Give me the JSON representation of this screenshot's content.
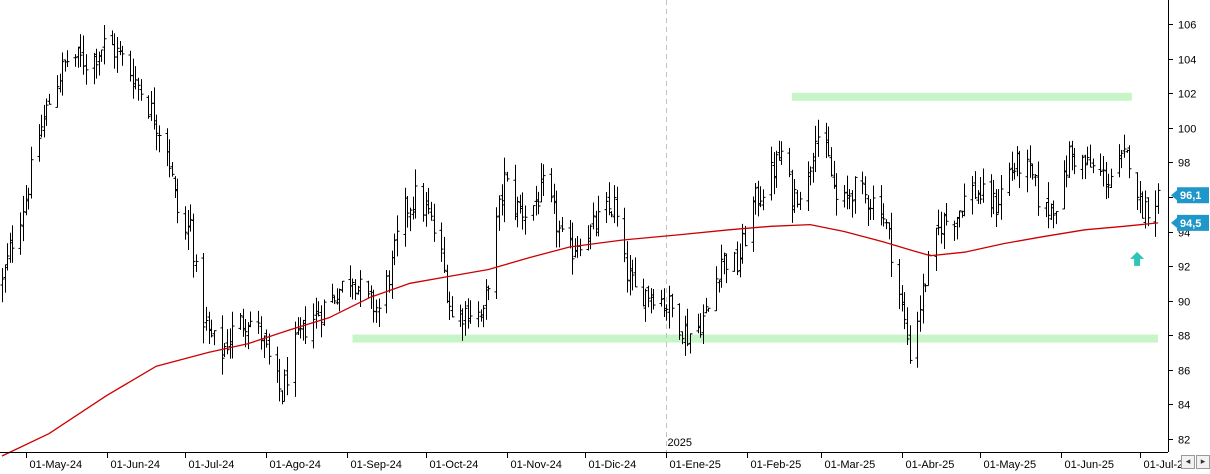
{
  "chart_data": {
    "type": "ohlc",
    "ylim": [
      81,
      107
    ],
    "y_ticks": [
      82,
      84,
      86,
      88,
      90,
      92,
      94,
      96,
      98,
      100,
      102,
      104,
      106
    ],
    "x_start": "2024-04-22",
    "x_end": "2025-07-08",
    "x_ticks": [
      {
        "date": "2024-05-01",
        "label": "01-May-24"
      },
      {
        "date": "2024-06-01",
        "label": "01-Jun-24"
      },
      {
        "date": "2024-07-01",
        "label": "01-Jul-24"
      },
      {
        "date": "2024-08-01",
        "label": "01-Ago-24"
      },
      {
        "date": "2024-09-01",
        "label": "01-Sep-24"
      },
      {
        "date": "2024-10-01",
        "label": "01-Oct-24"
      },
      {
        "date": "2024-11-01",
        "label": "01-Nov-24"
      },
      {
        "date": "2024-12-01",
        "label": "01-Dic-24"
      },
      {
        "date": "2025-01-01",
        "label": "01-Ene-25"
      },
      {
        "date": "2025-02-01",
        "label": "01-Feb-25"
      },
      {
        "date": "2025-03-01",
        "label": "01-Mar-25"
      },
      {
        "date": "2025-04-01",
        "label": "01-Abr-25"
      },
      {
        "date": "2025-05-01",
        "label": "01-May-25"
      },
      {
        "date": "2025-06-01",
        "label": "01-Jun-25"
      },
      {
        "date": "2025-07-01",
        "label": "01-Jul-2"
      }
    ],
    "year_marker": {
      "date": "2025-01-01",
      "label": "2025"
    },
    "price_anchors": [
      [
        "2024-04-22",
        91.0
      ],
      [
        "2024-04-26",
        93.5
      ],
      [
        "2024-05-01",
        96.0
      ],
      [
        "2024-05-06",
        99.5
      ],
      [
        "2024-05-12",
        102.5
      ],
      [
        "2024-05-18",
        104.2
      ],
      [
        "2024-05-25",
        103.8
      ],
      [
        "2024-06-01",
        105.0
      ],
      [
        "2024-06-07",
        104.0
      ],
      [
        "2024-06-13",
        102.5
      ],
      [
        "2024-06-18",
        101.0
      ],
      [
        "2024-06-24",
        99.0
      ],
      [
        "2024-06-27",
        96.0
      ],
      [
        "2024-06-30",
        93.5
      ],
      [
        "2024-07-03",
        94.5
      ],
      [
        "2024-07-06",
        90.0
      ],
      [
        "2024-07-10",
        88.0
      ],
      [
        "2024-07-15",
        87.0
      ],
      [
        "2024-07-20",
        88.5
      ],
      [
        "2024-07-25",
        89.0
      ],
      [
        "2024-07-30",
        88.0
      ],
      [
        "2024-08-04",
        85.5
      ],
      [
        "2024-08-07",
        84.5
      ],
      [
        "2024-08-11",
        87.0
      ],
      [
        "2024-08-16",
        88.5
      ],
      [
        "2024-08-22",
        89.5
      ],
      [
        "2024-08-28",
        90.5
      ],
      [
        "2024-09-03",
        91.5
      ],
      [
        "2024-09-08",
        90.0
      ],
      [
        "2024-09-13",
        89.5
      ],
      [
        "2024-09-18",
        92.0
      ],
      [
        "2024-09-22",
        95.0
      ],
      [
        "2024-09-27",
        96.0
      ],
      [
        "2024-10-02",
        95.0
      ],
      [
        "2024-10-07",
        92.5
      ],
      [
        "2024-10-11",
        89.0
      ],
      [
        "2024-10-17",
        89.5
      ],
      [
        "2024-10-23",
        89.0
      ],
      [
        "2024-10-27",
        93.5
      ],
      [
        "2024-10-31",
        97.0
      ],
      [
        "2024-11-04",
        95.5
      ],
      [
        "2024-11-09",
        95.0
      ],
      [
        "2024-11-15",
        96.5
      ],
      [
        "2024-11-19",
        95.0
      ],
      [
        "2024-11-24",
        92.5
      ],
      [
        "2024-11-28",
        93.5
      ],
      [
        "2024-12-03",
        94.0
      ],
      [
        "2024-12-08",
        95.0
      ],
      [
        "2024-12-12",
        95.5
      ],
      [
        "2024-12-16",
        92.0
      ],
      [
        "2024-12-20",
        90.5
      ],
      [
        "2024-12-27",
        90.5
      ],
      [
        "2025-01-03",
        89.5
      ],
      [
        "2025-01-09",
        88.0
      ],
      [
        "2025-01-13",
        88.5
      ],
      [
        "2025-01-17",
        89.5
      ],
      [
        "2025-01-22",
        92.5
      ],
      [
        "2025-01-28",
        92.0
      ],
      [
        "2025-02-03",
        95.5
      ],
      [
        "2025-02-09",
        97.0
      ],
      [
        "2025-02-14",
        98.5
      ],
      [
        "2025-02-18",
        96.0
      ],
      [
        "2025-02-24",
        97.0
      ],
      [
        "2025-02-27",
        100.0
      ],
      [
        "2025-03-04",
        98.0
      ],
      [
        "2025-03-08",
        95.0
      ],
      [
        "2025-03-13",
        96.5
      ],
      [
        "2025-03-18",
        96.0
      ],
      [
        "2025-03-24",
        95.5
      ],
      [
        "2025-03-28",
        93.0
      ],
      [
        "2025-04-01",
        89.5
      ],
      [
        "2025-04-04",
        87.0
      ],
      [
        "2025-04-07",
        89.0
      ],
      [
        "2025-04-11",
        92.0
      ],
      [
        "2025-04-16",
        94.5
      ],
      [
        "2025-04-22",
        95.0
      ],
      [
        "2025-04-27",
        96.5
      ],
      [
        "2025-05-02",
        96.0
      ],
      [
        "2025-05-07",
        95.5
      ],
      [
        "2025-05-12",
        97.5
      ],
      [
        "2025-05-17",
        98.0
      ],
      [
        "2025-05-21",
        97.0
      ],
      [
        "2025-05-25",
        95.0
      ],
      [
        "2025-05-28",
        95.5
      ],
      [
        "2025-06-01",
        96.0
      ],
      [
        "2025-06-04",
        98.5
      ],
      [
        "2025-06-09",
        98.0
      ],
      [
        "2025-06-14",
        97.5
      ],
      [
        "2025-06-19",
        97.0
      ],
      [
        "2025-06-24",
        98.0
      ],
      [
        "2025-06-28",
        98.5
      ],
      [
        "2025-07-01",
        95.5
      ],
      [
        "2025-07-04",
        95.5
      ],
      [
        "2025-07-08",
        96.1
      ]
    ],
    "moving_average": [
      [
        "2024-04-22",
        81.0
      ],
      [
        "2024-05-10",
        82.3
      ],
      [
        "2024-06-01",
        84.5
      ],
      [
        "2024-06-20",
        86.2
      ],
      [
        "2024-07-10",
        87.0
      ],
      [
        "2024-07-25",
        87.5
      ],
      [
        "2024-08-10",
        88.3
      ],
      [
        "2024-08-25",
        89.0
      ],
      [
        "2024-09-10",
        90.2
      ],
      [
        "2024-09-25",
        91.0
      ],
      [
        "2024-10-10",
        91.4
      ],
      [
        "2024-10-25",
        91.8
      ],
      [
        "2024-11-10",
        92.5
      ],
      [
        "2024-11-25",
        93.1
      ],
      [
        "2024-12-15",
        93.5
      ],
      [
        "2025-01-05",
        93.8
      ],
      [
        "2025-01-25",
        94.1
      ],
      [
        "2025-02-10",
        94.3
      ],
      [
        "2025-02-25",
        94.4
      ],
      [
        "2025-03-10",
        94.0
      ],
      [
        "2025-03-25",
        93.4
      ],
      [
        "2025-04-05",
        92.9
      ],
      [
        "2025-04-12",
        92.6
      ],
      [
        "2025-04-25",
        92.8
      ],
      [
        "2025-05-10",
        93.3
      ],
      [
        "2025-05-25",
        93.7
      ],
      [
        "2025-06-10",
        94.1
      ],
      [
        "2025-06-25",
        94.3
      ],
      [
        "2025-07-08",
        94.5
      ]
    ],
    "resistance_band": {
      "y": 101.8,
      "x_start": "2025-02-18",
      "x_end": "2025-06-28"
    },
    "support_band": {
      "y": 87.8,
      "x_start": "2024-09-03",
      "x_end": "2025-07-08"
    },
    "price_badge": {
      "label": "96,1",
      "value": 96.1,
      "color": "#1f97c8"
    },
    "ma_badge": {
      "label": "94,5",
      "value": 94.5,
      "color": "#1f97c8"
    },
    "arrow": {
      "date": "2025-06-30",
      "value": 92.3,
      "color": "#2ec4b6"
    },
    "colors": {
      "bars": "#000000",
      "ma": "#cc0000",
      "band": "#c8f5c8",
      "grid": "#cccccc"
    }
  },
  "scroll_buttons": {
    "left_label": "◂",
    "right_label": "▸"
  }
}
